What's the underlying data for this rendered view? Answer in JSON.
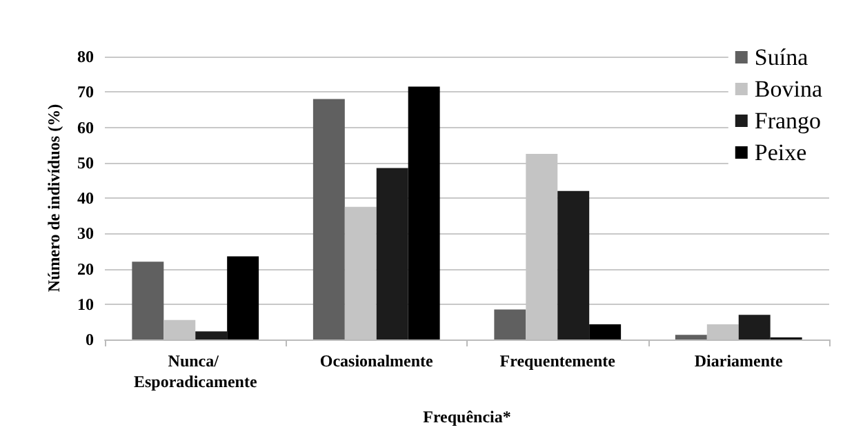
{
  "chart_data": {
    "type": "bar",
    "xlabel": "Frequência*",
    "ylabel": "Número de indivíduos (%)",
    "categories": [
      "Nunca/ Esporadicamente",
      "Ocasionalmente",
      "Frequentemente",
      "Diariamente"
    ],
    "series": [
      {
        "name": "Suína",
        "color": "#606060",
        "values": [
          22,
          68,
          8.5,
          1.3
        ]
      },
      {
        "name": "Bovina",
        "color": "#c4c4c4",
        "values": [
          5.5,
          37.5,
          52.5,
          4.3
        ]
      },
      {
        "name": "Frango",
        "color": "#1c1c1c",
        "values": [
          2.3,
          48.5,
          42,
          7
        ]
      },
      {
        "name": "Peixe",
        "color": "#000000",
        "values": [
          23.5,
          71.5,
          4.3,
          0.6
        ]
      }
    ],
    "ylim": [
      0,
      80
    ],
    "yticks": [
      0,
      10,
      20,
      30,
      40,
      50,
      60,
      70,
      80
    ],
    "grid": "y",
    "legend": "top right"
  }
}
